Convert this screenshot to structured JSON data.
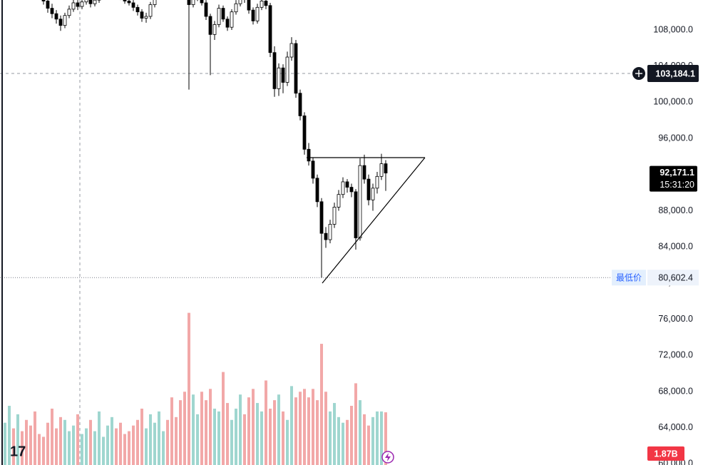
{
  "chart_data": {
    "type": "candlestick",
    "ylim": [
      59874,
      111314
    ],
    "yticks": [
      {
        "value": 60000,
        "label": "60,000.0"
      },
      {
        "value": 64000,
        "label": "64,000.0"
      },
      {
        "value": 68000,
        "label": "68,000.0"
      },
      {
        "value": 72000,
        "label": "72,000.0"
      },
      {
        "value": 76000,
        "label": "76,000.0"
      },
      {
        "value": 80000,
        "label": "80,000.0"
      },
      {
        "value": 84000,
        "label": "84,000.0"
      },
      {
        "value": 88000,
        "label": "88,000.0"
      },
      {
        "value": 92000,
        "label": "92,000.0"
      },
      {
        "value": 96000,
        "label": "96,000.0"
      },
      {
        "value": 100000,
        "label": "100,000.0"
      },
      {
        "value": 104000,
        "label": "104,000.0"
      },
      {
        "value": 108000,
        "label": "108,000.0"
      }
    ],
    "up_color": "#ffffff",
    "down_color": "#000000",
    "wick_color": "#000000",
    "candles": [
      [
        113600,
        114600,
        113300,
        114000
      ],
      [
        114000,
        115000,
        113700,
        114500
      ],
      [
        114500,
        114800,
        113400,
        113800
      ],
      [
        113800,
        114700,
        113500,
        114200
      ],
      [
        114200,
        114400,
        113100,
        113500
      ],
      [
        113500,
        113900,
        112600,
        113000
      ],
      [
        113000,
        113400,
        112300,
        112800
      ],
      [
        112800,
        113200,
        112000,
        112500
      ],
      [
        112500,
        112700,
        111500,
        111900
      ],
      [
        111900,
        112300,
        110800,
        111200
      ],
      [
        111200,
        111600,
        109900,
        110400
      ],
      [
        110400,
        110900,
        109300,
        109800
      ],
      [
        109800,
        110200,
        108700,
        109200
      ],
      [
        109200,
        109600,
        107900,
        108500
      ],
      [
        108500,
        109900,
        108200,
        109600
      ],
      [
        109600,
        110700,
        109300,
        110300
      ],
      [
        110300,
        111400,
        110000,
        111000
      ],
      [
        111000,
        111300,
        110200,
        110600
      ],
      [
        110600,
        111500,
        110300,
        111100
      ],
      [
        111100,
        111900,
        110800,
        111500
      ],
      [
        111500,
        111700,
        110500,
        110900
      ],
      [
        110900,
        111600,
        110600,
        111300
      ],
      [
        111300,
        112200,
        111000,
        111800
      ],
      [
        111800,
        112500,
        111500,
        112200
      ],
      [
        112200,
        113000,
        111900,
        112600
      ],
      [
        112600,
        113400,
        112300,
        113000
      ],
      [
        113000,
        113200,
        112000,
        112400
      ],
      [
        112400,
        112700,
        111300,
        111600
      ],
      [
        111600,
        111900,
        110900,
        111200
      ],
      [
        111200,
        111500,
        110700,
        111000
      ],
      [
        111000,
        111300,
        110100,
        110500
      ],
      [
        110500,
        110800,
        109600,
        110000
      ],
      [
        110000,
        110300,
        108900,
        109300
      ],
      [
        109300,
        109900,
        108800,
        109500
      ],
      [
        109500,
        111100,
        109200,
        110800
      ],
      [
        110800,
        112300,
        110500,
        112000
      ],
      [
        112000,
        113800,
        111700,
        113500
      ],
      [
        113500,
        114600,
        113200,
        114200
      ],
      [
        114200,
        114500,
        113400,
        113800
      ],
      [
        113800,
        114100,
        112700,
        113000
      ],
      [
        113000,
        113300,
        112100,
        112500
      ],
      [
        112500,
        112800,
        111900,
        112300
      ],
      [
        112300,
        112600,
        111500,
        111900
      ],
      [
        111900,
        112300,
        101400,
        110800
      ],
      [
        110800,
        111900,
        110500,
        111500
      ],
      [
        111500,
        113200,
        111200,
        112800
      ],
      [
        112800,
        113100,
        110700,
        111000
      ],
      [
        111000,
        111300,
        109100,
        109500
      ],
      [
        109500,
        109800,
        103000,
        107500
      ],
      [
        107500,
        109000,
        106900,
        108600
      ],
      [
        108600,
        110800,
        108300,
        110400
      ],
      [
        110400,
        110700,
        108900,
        109200
      ],
      [
        109200,
        109500,
        107900,
        108300
      ],
      [
        108300,
        110300,
        108000,
        110000
      ],
      [
        110000,
        111300,
        109700,
        110900
      ],
      [
        110900,
        112400,
        110600,
        112000
      ],
      [
        112000,
        112300,
        111000,
        111400
      ],
      [
        111400,
        111700,
        109800,
        110200
      ],
      [
        110200,
        110500,
        108600,
        109000
      ],
      [
        109000,
        110900,
        108700,
        110500
      ],
      [
        110500,
        111600,
        110200,
        111200
      ],
      [
        111200,
        111500,
        110300,
        110700
      ],
      [
        110700,
        111000,
        105000,
        105500
      ],
      [
        105500,
        106200,
        100600,
        101500
      ],
      [
        101500,
        104300,
        100700,
        103800
      ],
      [
        103800,
        104200,
        101000,
        102200
      ],
      [
        102200,
        105600,
        101800,
        105000
      ],
      [
        105000,
        107200,
        104600,
        106500
      ],
      [
        106500,
        106900,
        100500,
        101000
      ],
      [
        101000,
        101400,
        98000,
        98500
      ],
      [
        98500,
        98900,
        94200,
        94800
      ],
      [
        94800,
        95500,
        93000,
        93500
      ],
      [
        93500,
        93900,
        91000,
        91600
      ],
      [
        91600,
        92000,
        88400,
        89000
      ],
      [
        89000,
        89400,
        80602.4,
        85500
      ],
      [
        85500,
        86200,
        83900,
        84800
      ],
      [
        84800,
        87000,
        84400,
        86500
      ],
      [
        86500,
        88900,
        86100,
        88400
      ],
      [
        88400,
        90300,
        88000,
        89800
      ],
      [
        89800,
        91700,
        89400,
        91200
      ],
      [
        91200,
        91500,
        90000,
        90600
      ],
      [
        90600,
        91000,
        89500,
        90100
      ],
      [
        90100,
        90400,
        83700,
        85000
      ],
      [
        85000,
        93800,
        84700,
        93000
      ],
      [
        93000,
        94200,
        91000,
        91500
      ],
      [
        91500,
        92000,
        88600,
        89200
      ],
      [
        89200,
        91000,
        88000,
        90500
      ],
      [
        90500,
        92300,
        89900,
        91800
      ],
      [
        91800,
        94300,
        91400,
        93200
      ],
      [
        93200,
        93600,
        90200,
        92171.1
      ]
    ],
    "volume": {
      "vlim": [
        0,
        16.5
      ],
      "up_color": "#9fd6cf",
      "down_color": "#f2a8a8",
      "values": [
        1.5,
        2.1,
        1.3,
        1.8,
        1.2,
        1.6,
        1.4,
        1.9,
        1.1,
        1.0,
        1.5,
        2.0,
        1.3,
        1.7,
        1.6,
        1.2,
        1.4,
        1.8,
        1.1,
        1.3,
        1.6,
        1.2,
        1.9,
        1.0,
        1.4,
        1.7,
        1.3,
        1.5,
        1.1,
        1.2,
        1.4,
        1.6,
        2.0,
        1.3,
        1.8,
        1.5,
        1.9,
        1.2,
        1.6,
        2.4,
        1.7,
        2.3,
        2.6,
        5.4,
        2.5,
        1.8,
        2.6,
        2.3,
        2.7,
        2.0,
        1.9,
        3.3,
        2.2,
        1.6,
        2.0,
        2.5,
        1.8,
        2.4,
        2.7,
        2.2,
        1.9,
        3.0,
        2.0,
        2.3,
        2.5,
        1.9,
        1.6,
        2.8,
        2.4,
        2.6,
        2.7,
        2.4,
        2.7,
        2.3,
        4.3,
        2.6,
        1.9,
        2.2,
        1.7,
        1.5,
        1.6,
        2.1,
        2.9,
        2.3,
        1.8,
        1.4,
        1.7,
        1.9,
        1.9,
        1.87
      ],
      "last_label": {
        "value": 1.87,
        "label": "1.87B"
      }
    },
    "crosshair": {
      "value": 103184.1,
      "label": "103,184.1"
    },
    "last_price": {
      "value": 92171.1,
      "label": "92,171.1"
    },
    "countdown": "15:31:20",
    "lowest": {
      "label": "最低价",
      "price": {
        "value": 80602.4,
        "label": "80,602.4"
      }
    }
  }
}
